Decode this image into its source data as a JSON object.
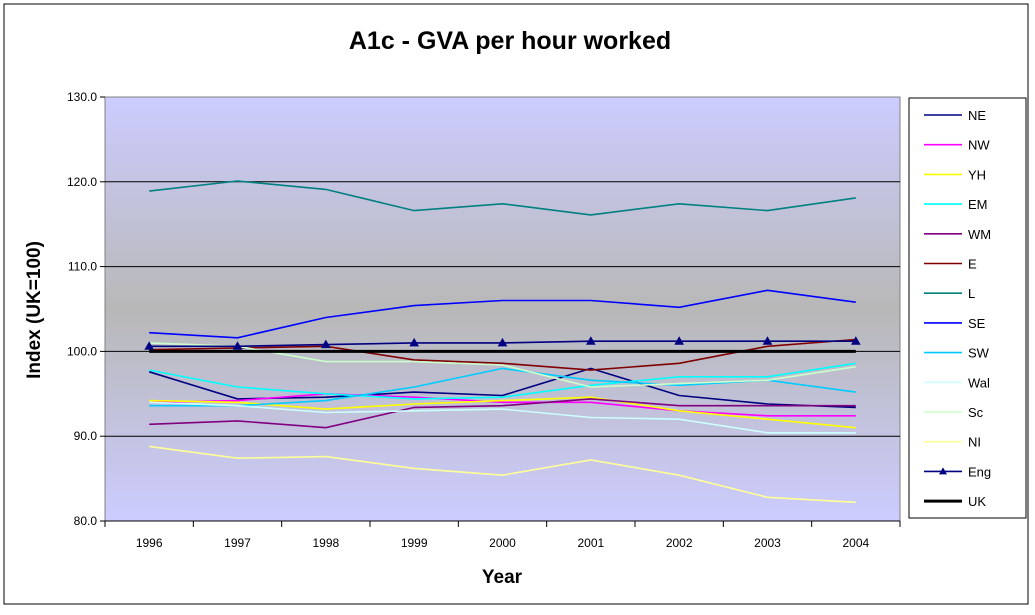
{
  "chart_data": {
    "type": "line",
    "title": "A1c - GVA per hour worked",
    "xlabel": "Year",
    "ylabel": "Index (UK=100)",
    "ylim": [
      80,
      130
    ],
    "yticks": [
      "80.0",
      "90.0",
      "100.0",
      "110.0",
      "120.0",
      "130.0"
    ],
    "ytick_values": [
      80,
      90,
      100,
      110,
      120,
      130
    ],
    "categories": [
      "1996",
      "1997",
      "1998",
      "1999",
      "2000",
      "2001",
      "2002",
      "2003",
      "2004"
    ],
    "grid": true,
    "legend_position": "right",
    "plot_background": "gradient lavender-grey-lavender",
    "series": [
      {
        "name": "NE",
        "color": "#000080",
        "values": [
          97.6,
          94.4,
          94.6,
          95.2,
          94.8,
          98.0,
          94.8,
          93.8,
          93.4
        ]
      },
      {
        "name": "NW",
        "color": "#FF00FF",
        "values": [
          94.0,
          94.2,
          95.0,
          94.6,
          94.0,
          94.0,
          93.0,
          92.4,
          92.4
        ]
      },
      {
        "name": "YH",
        "color": "#FFFF00",
        "values": [
          94.2,
          94.0,
          93.2,
          93.8,
          94.2,
          94.6,
          93.0,
          92.0,
          91.0
        ]
      },
      {
        "name": "EM",
        "color": "#00FFFF",
        "values": [
          97.8,
          95.8,
          95.0,
          94.4,
          94.6,
          96.0,
          97.0,
          97.0,
          98.6
        ]
      },
      {
        "name": "WM",
        "color": "#800080",
        "values": [
          91.4,
          91.8,
          91.0,
          93.4,
          93.6,
          94.4,
          93.6,
          93.6,
          93.6
        ]
      },
      {
        "name": "E",
        "color": "#800000",
        "values": [
          100.2,
          100.4,
          100.6,
          99.0,
          98.6,
          97.8,
          98.6,
          100.6,
          101.4
        ]
      },
      {
        "name": "L",
        "color": "#008080",
        "values": [
          118.9,
          120.1,
          119.1,
          116.6,
          117.4,
          116.1,
          117.4,
          116.6,
          118.1
        ]
      },
      {
        "name": "SE",
        "color": "#0000FF",
        "values": [
          102.2,
          101.6,
          104.0,
          105.4,
          106.0,
          106.0,
          105.2,
          107.2,
          105.8
        ]
      },
      {
        "name": "SW",
        "color": "#00CCFF",
        "values": [
          93.6,
          93.6,
          94.2,
          95.8,
          98.0,
          96.6,
          96.0,
          96.6,
          95.2
        ]
      },
      {
        "name": "Wal",
        "color": "#CCFFFF",
        "values": [
          94.0,
          93.6,
          92.8,
          93.0,
          93.2,
          92.2,
          92.0,
          90.4,
          90.4
        ]
      },
      {
        "name": "Sc",
        "color": "#CCFFCC",
        "values": [
          101.0,
          100.6,
          98.8,
          98.8,
          98.4,
          95.8,
          96.2,
          96.6,
          98.2
        ]
      },
      {
        "name": "NI",
        "color": "#FFFF99",
        "values": [
          88.8,
          87.4,
          87.6,
          86.2,
          85.4,
          87.2,
          85.4,
          82.8,
          82.2
        ]
      },
      {
        "name": "Eng",
        "color": "#000080",
        "marker": "triangle",
        "values": [
          100.6,
          100.6,
          100.8,
          101.0,
          101.0,
          101.2,
          101.2,
          101.2,
          101.2
        ]
      },
      {
        "name": "UK",
        "color": "#000000",
        "bold": true,
        "values": [
          100.0,
          100.0,
          100.0,
          100.0,
          100.0,
          100.0,
          100.0,
          100.0,
          100.0
        ]
      }
    ]
  }
}
